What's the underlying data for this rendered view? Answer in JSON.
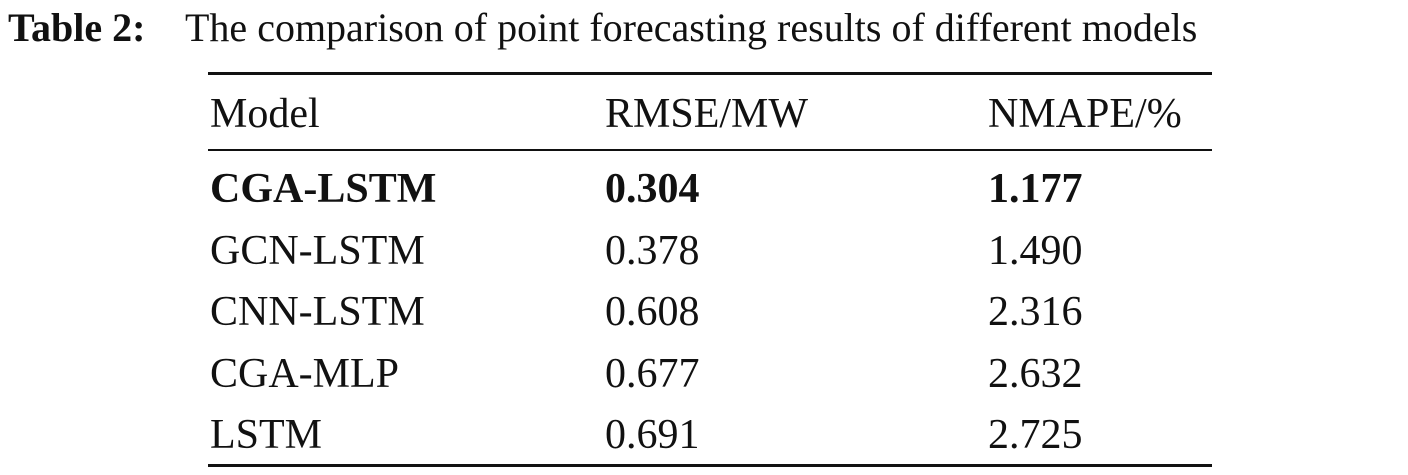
{
  "caption": {
    "label": "Table 2:",
    "text": "The comparison of point forecasting results of different models"
  },
  "table": {
    "header": [
      "Model",
      "RMSE/MW",
      "NMAPE/%"
    ],
    "rows": [
      [
        "CGA-LSTM",
        "0.304",
        "1.177"
      ],
      [
        "GCN-LSTM",
        "0.378",
        "1.490"
      ],
      [
        "CNN-LSTM",
        "0.608",
        "2.316"
      ],
      [
        "CGA-MLP",
        "0.677",
        "2.632"
      ],
      [
        "LSTM",
        "0.691",
        "2.725"
      ]
    ]
  }
}
